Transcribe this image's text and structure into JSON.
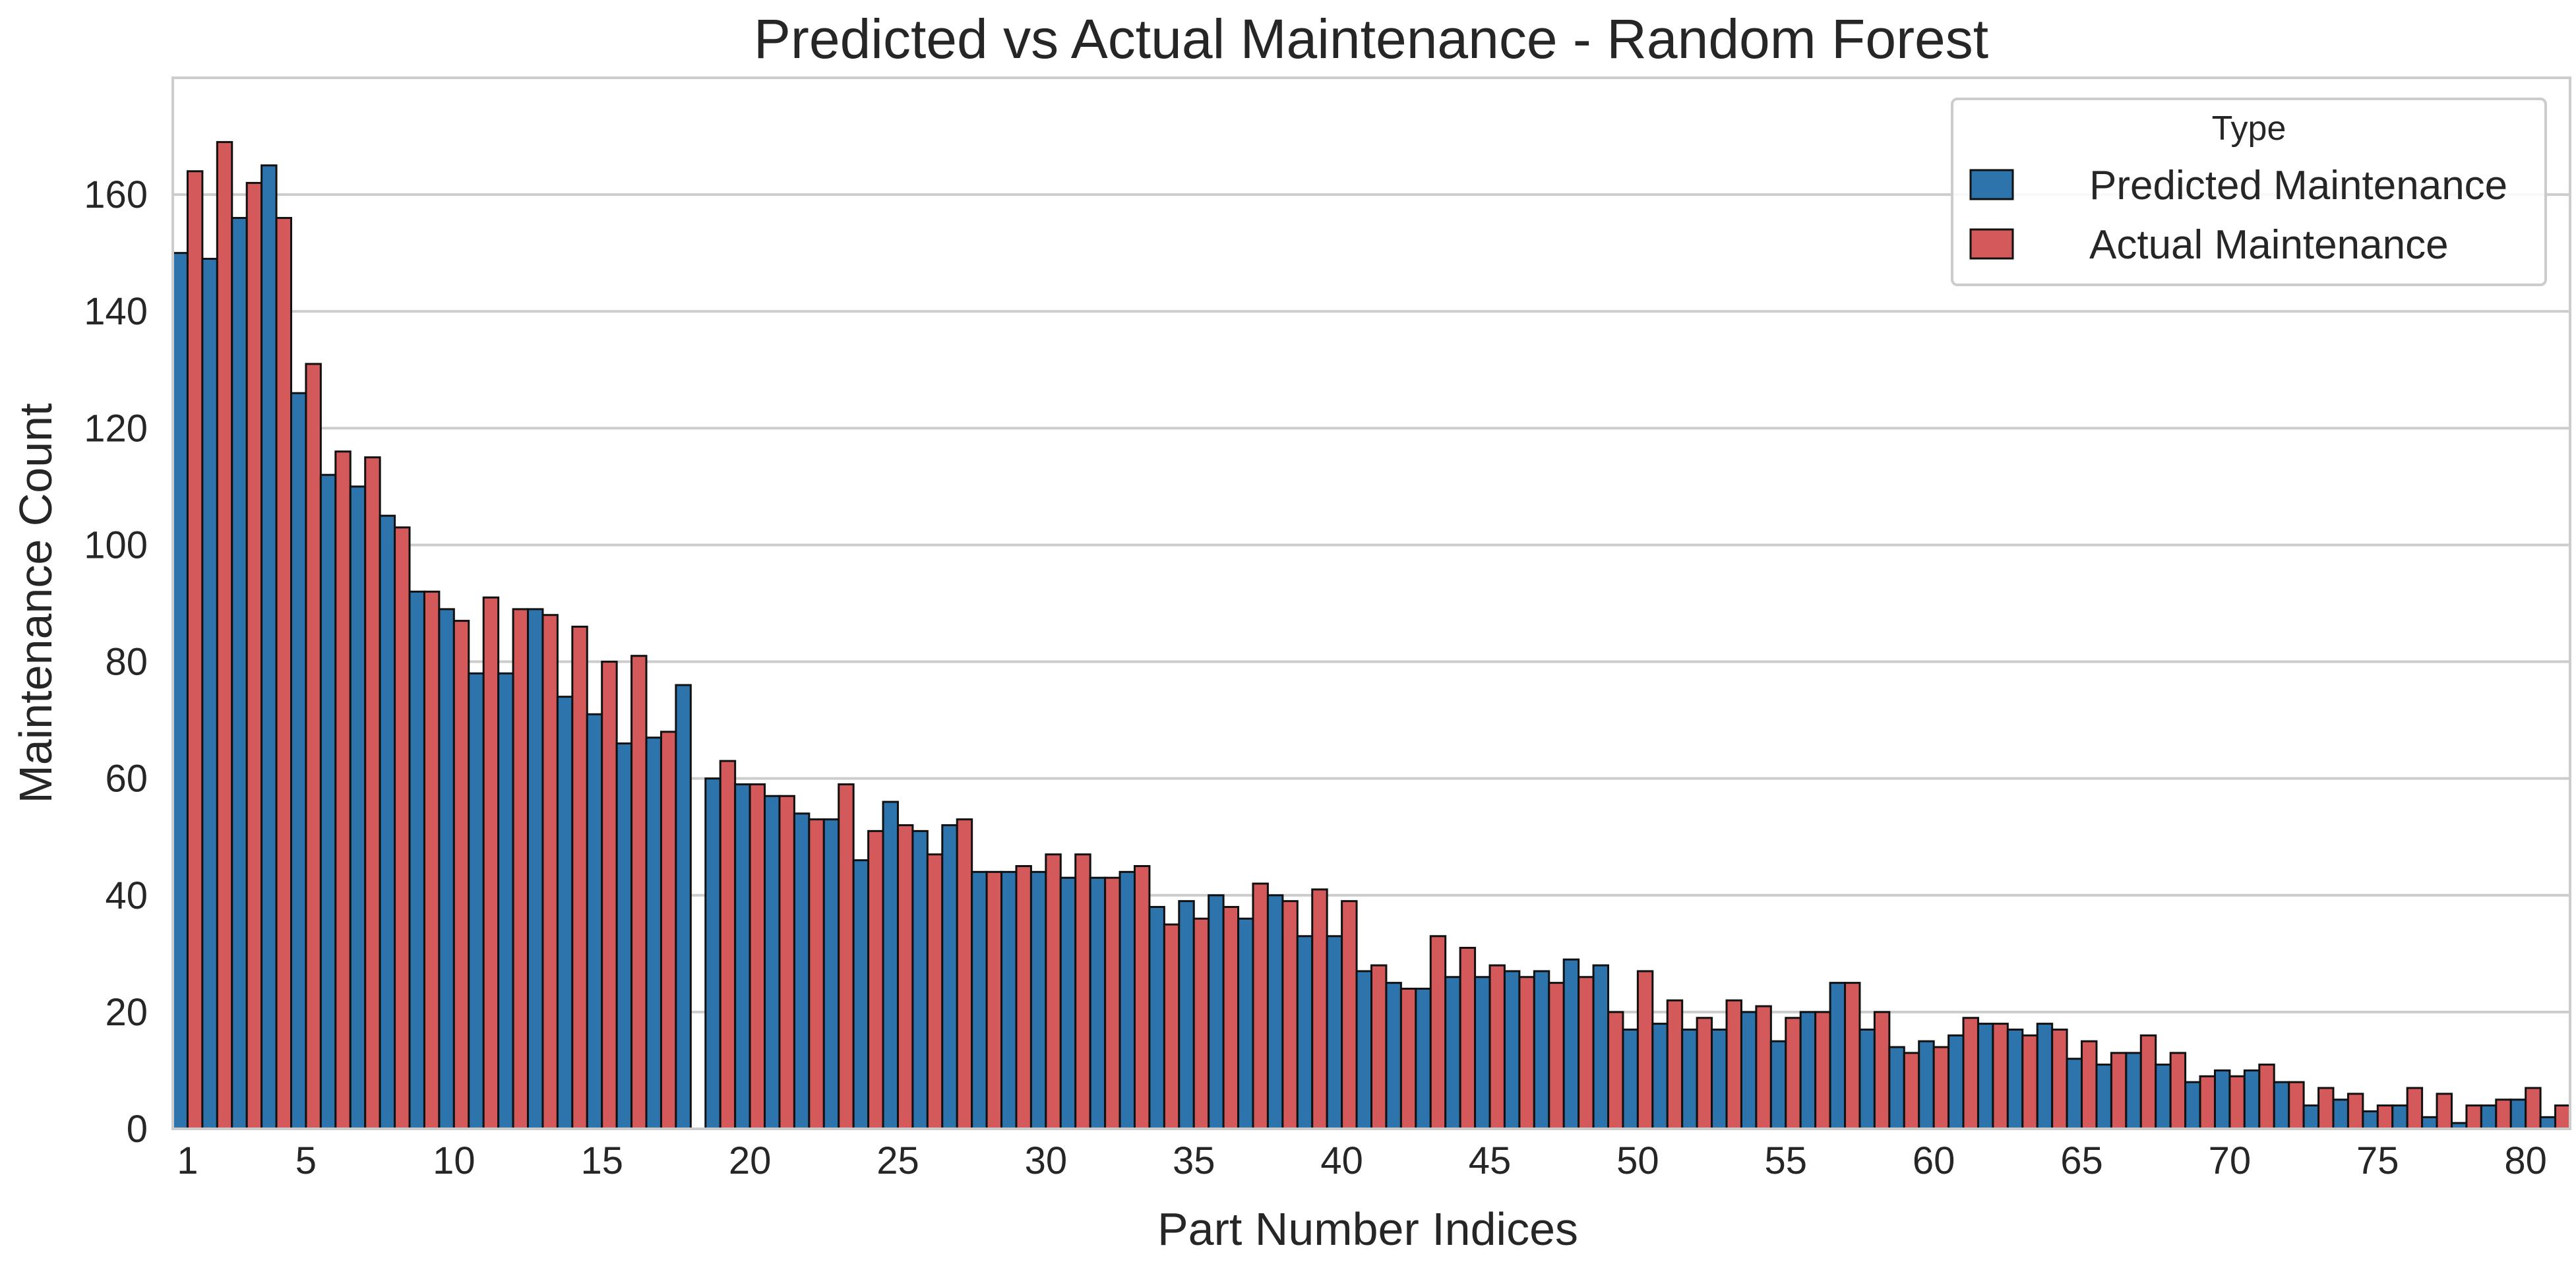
{
  "chart_data": {
    "type": "bar",
    "title": "Predicted vs Actual Maintenance - Random Forest",
    "xlabel": "Part Number Indices",
    "ylabel": "Maintenance Count",
    "ylim": [
      0,
      180
    ],
    "yticks": [
      0,
      20,
      40,
      60,
      80,
      100,
      120,
      140,
      160
    ],
    "xtick_labels": [
      1,
      5,
      10,
      15,
      20,
      25,
      30,
      35,
      40,
      45,
      50,
      55,
      60,
      65,
      70,
      75,
      80
    ],
    "grid": "horizontal",
    "legend": {
      "title": "Type",
      "placement": "top-right"
    },
    "categories": [
      1,
      2,
      3,
      4,
      5,
      6,
      7,
      8,
      9,
      10,
      11,
      12,
      13,
      14,
      15,
      16,
      17,
      18,
      19,
      20,
      21,
      22,
      23,
      24,
      25,
      26,
      27,
      28,
      29,
      30,
      31,
      32,
      33,
      34,
      35,
      36,
      37,
      38,
      39,
      40,
      41,
      42,
      43,
      44,
      45,
      46,
      47,
      48,
      49,
      50,
      51,
      52,
      53,
      54,
      55,
      56,
      57,
      58,
      59,
      60,
      61,
      62,
      63,
      64,
      65,
      66,
      67,
      68,
      69,
      70,
      71,
      72,
      73,
      74,
      75,
      76,
      77,
      78,
      79,
      80,
      81
    ],
    "series": [
      {
        "name": "Predicted Maintenance",
        "color": "#2d74ad",
        "values": [
          150,
          149,
          156,
          165,
          126,
          112,
          110,
          105,
          92,
          89,
          78,
          78,
          89,
          74,
          71,
          66,
          67,
          76,
          60,
          59,
          57,
          54,
          53,
          46,
          56,
          51,
          52,
          44,
          44,
          44,
          43,
          43,
          44,
          38,
          39,
          40,
          36,
          40,
          33,
          33,
          27,
          25,
          24,
          26,
          26,
          27,
          27,
          29,
          28,
          17,
          18,
          17,
          17,
          20,
          15,
          20,
          25,
          17,
          14,
          15,
          16,
          18,
          17,
          18,
          12,
          11,
          13,
          11,
          8,
          10,
          10,
          8,
          4,
          5,
          3,
          4,
          2,
          1,
          4,
          5,
          2
        ]
      },
      {
        "name": "Actual Maintenance",
        "color": "#d3595b",
        "values": [
          164,
          169,
          162,
          156,
          131,
          116,
          115,
          103,
          92,
          87,
          91,
          89,
          88,
          86,
          80,
          81,
          68,
          null,
          63,
          59,
          57,
          53,
          59,
          51,
          52,
          47,
          53,
          44,
          45,
          47,
          47,
          43,
          45,
          35,
          36,
          38,
          42,
          39,
          41,
          39,
          28,
          24,
          33,
          31,
          28,
          26,
          25,
          26,
          20,
          27,
          22,
          19,
          22,
          21,
          19,
          20,
          25,
          20,
          13,
          14,
          19,
          18,
          16,
          17,
          15,
          13,
          16,
          13,
          9,
          9,
          11,
          8,
          7,
          6,
          4,
          7,
          6,
          4,
          5,
          7,
          4
        ]
      }
    ]
  }
}
